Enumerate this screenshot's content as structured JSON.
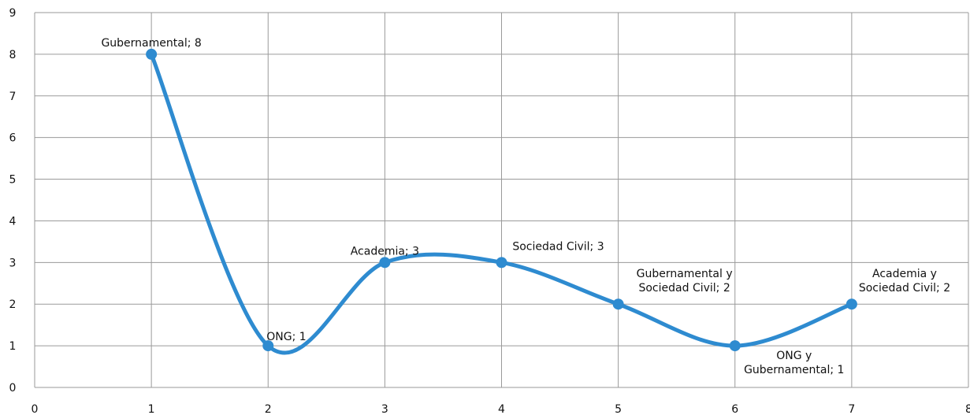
{
  "chart_data": {
    "type": "line",
    "title": "",
    "xlabel": "",
    "ylabel": "",
    "xlim": [
      0,
      8
    ],
    "ylim": [
      0,
      9
    ],
    "x_ticks": [
      "0",
      "1",
      "2",
      "3",
      "4",
      "5",
      "6",
      "7",
      "8"
    ],
    "y_ticks": [
      "0",
      "1",
      "2",
      "3",
      "4",
      "5",
      "6",
      "7",
      "8",
      "9"
    ],
    "grid": true,
    "smooth": true,
    "series": [
      {
        "color": "#2e8bd0",
        "points": [
          {
            "x": 1,
            "y": 8,
            "label": [
              "Gubernamental; 8"
            ],
            "label_pos": "above"
          },
          {
            "x": 2,
            "y": 1,
            "label": [
              "ONG; 1"
            ],
            "label_pos": "right"
          },
          {
            "x": 3,
            "y": 3,
            "label": [
              "Academia; 3"
            ],
            "label_pos": "above"
          },
          {
            "x": 4,
            "y": 3,
            "label": [
              "Sociedad Civil; 3"
            ],
            "label_pos": "above-right"
          },
          {
            "x": 5,
            "y": 2,
            "label": [
              "Gubernamental y",
              "Sociedad Civil; 2"
            ],
            "label_pos": "above-right"
          },
          {
            "x": 6,
            "y": 1,
            "label": [
              "ONG y",
              "Gubernamental; 1"
            ],
            "label_pos": "below-right"
          },
          {
            "x": 7,
            "y": 2,
            "label": [
              "Academia y",
              "Sociedad Civil; 2"
            ],
            "label_pos": "above-right"
          }
        ]
      }
    ]
  }
}
